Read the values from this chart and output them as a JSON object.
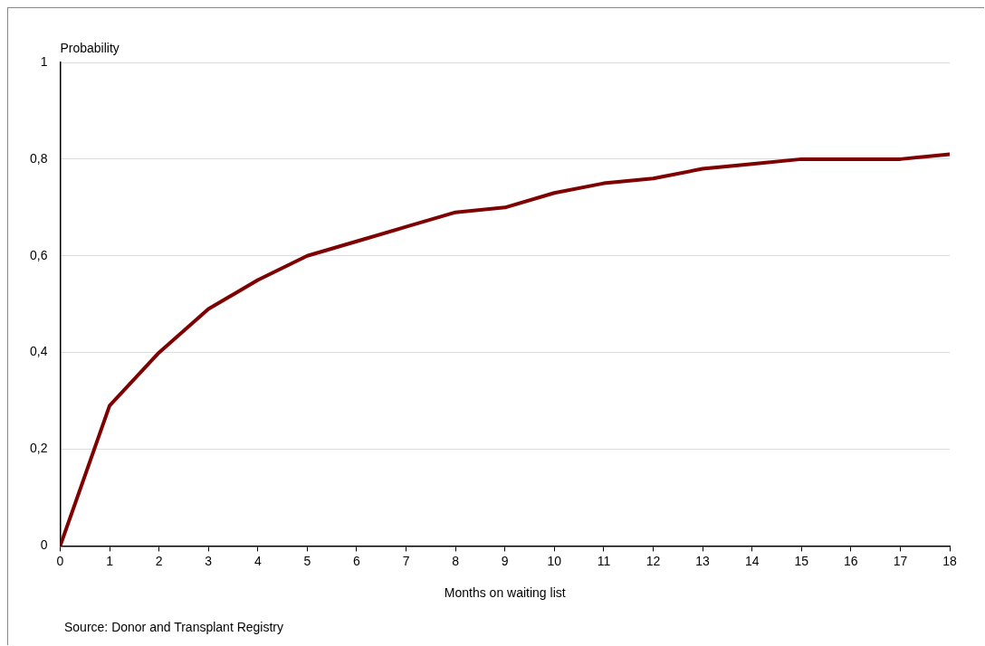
{
  "chart_data": {
    "type": "line",
    "ylabel": "Probability",
    "xlabel": "Months on waiting list",
    "x": [
      0,
      1,
      2,
      3,
      4,
      5,
      6,
      7,
      8,
      9,
      10,
      11,
      12,
      13,
      14,
      15,
      16,
      17,
      18
    ],
    "series": [
      {
        "color": "#7f0000",
        "values": [
          0,
          0.29,
          0.4,
          0.49,
          0.55,
          0.6,
          0.63,
          0.66,
          0.69,
          0.7,
          0.73,
          0.75,
          0.76,
          0.78,
          0.79,
          0.8,
          0.8,
          0.8,
          0.81
        ]
      }
    ],
    "xlim": [
      0,
      18
    ],
    "xticks": [
      0,
      1,
      2,
      3,
      4,
      5,
      6,
      7,
      8,
      9,
      10,
      11,
      12,
      13,
      14,
      15,
      16,
      17,
      18
    ],
    "ylim": [
      0,
      1
    ],
    "yticks": [
      0,
      {
        "value": 0.2,
        "label": "0,2"
      },
      {
        "value": 0.4,
        "label": "0,4"
      },
      {
        "value": 0.6,
        "label": "0,6"
      },
      {
        "value": 0.8,
        "label": "0,8"
      },
      1
    ],
    "grid": "y",
    "legend": false,
    "marker": "none",
    "line_style": "solid",
    "annotations": [
      "Source: Donor and Transplant Registry"
    ]
  }
}
